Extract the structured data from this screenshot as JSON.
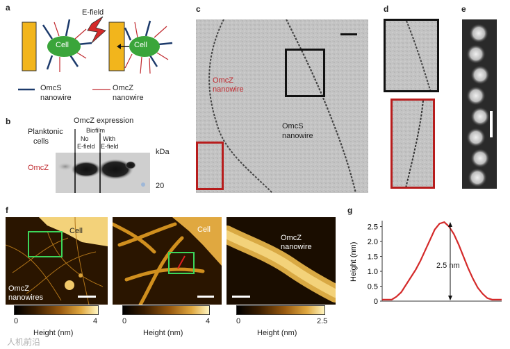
{
  "panels": {
    "a": "a",
    "b": "b",
    "c": "c",
    "d": "d",
    "e": "e",
    "f": "f",
    "g": "g"
  },
  "a": {
    "efield_label": "E-field",
    "cell_left": "Cell",
    "cell_right": "Cell",
    "legend_omcs_1": "OmcS",
    "legend_omcs_2": "nanowire",
    "legend_omcz_1": "OmcZ",
    "legend_omcz_2": "nanowire",
    "colors": {
      "omcs": "#1c3a6b",
      "omcz": "#c0282d",
      "cell": "#3aa53a",
      "membrane": "#f2b51c"
    }
  },
  "b": {
    "title": "OmcZ expression",
    "planktonic_1": "Planktonic",
    "planktonic_2": "cells",
    "biofilm": "Biofilm",
    "no_1": "No",
    "no_2": "E-field",
    "with_1": "With",
    "with_2": "E-field",
    "kda": "kDa",
    "omcz": "OmcZ",
    "mw_20": "20"
  },
  "c": {
    "omcz_1": "OmcZ",
    "omcz_2": "nanowire",
    "omcs_1": "OmcS",
    "omcs_2": "nanowire"
  },
  "f": {
    "cell_1": "Cell",
    "cell_2": "Cell",
    "omcz_nw_1": "OmcZ",
    "omcz_nw_2": "nanowires",
    "omcz_single_1": "OmcZ",
    "omcz_single_2": "nanowire",
    "cbar1": {
      "min": "0",
      "max": "4",
      "label": "Height (nm)"
    },
    "cbar2": {
      "min": "0",
      "max": "4",
      "label": "Height (nm)"
    },
    "cbar3": {
      "min": "0",
      "max": "2.5",
      "label": "Height (nm)"
    }
  },
  "g": {
    "annotation": "2.5 nm"
  },
  "chart_data": {
    "type": "line",
    "title": "",
    "xlabel": "",
    "ylabel": "Height (nm)",
    "ylim": [
      0,
      2.7
    ],
    "yticks": [
      "0",
      "0.5",
      "1.0",
      "1.5",
      "2.0",
      "2.5"
    ],
    "series": [
      {
        "color": "#d42a2a",
        "x": [
          0,
          2,
          4,
          6,
          8,
          10,
          12,
          14,
          16,
          18,
          20,
          22,
          24,
          26,
          28,
          30,
          32,
          34,
          36,
          38,
          40,
          42,
          44,
          46,
          48,
          50
        ],
        "values": [
          0.05,
          0.05,
          0.05,
          0.15,
          0.3,
          0.55,
          0.8,
          1.05,
          1.35,
          1.7,
          2.05,
          2.4,
          2.6,
          2.65,
          2.5,
          2.25,
          1.9,
          1.5,
          1.1,
          0.75,
          0.45,
          0.25,
          0.1,
          0.05,
          0.05,
          0.05
        ]
      }
    ]
  },
  "watermark": "人机前沿"
}
